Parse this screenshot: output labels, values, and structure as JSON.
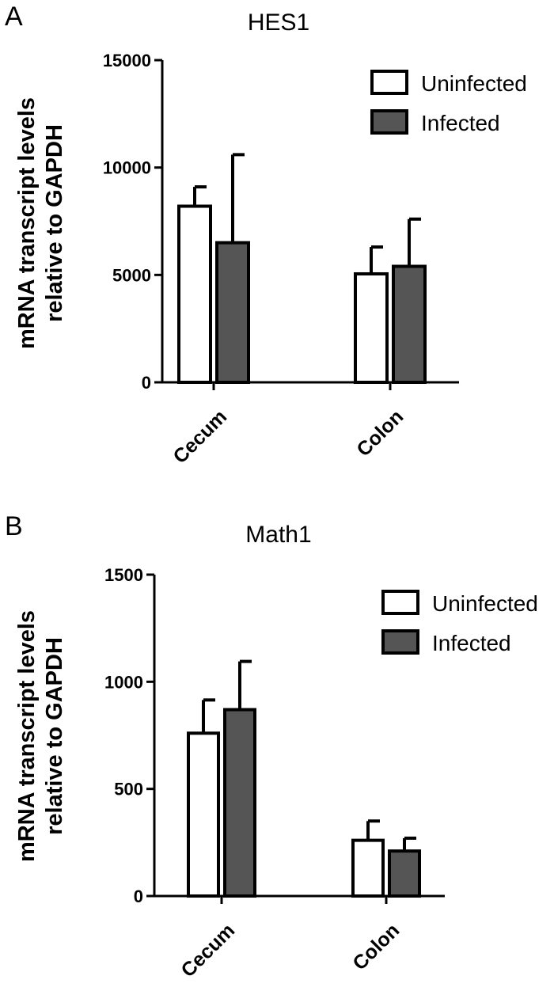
{
  "chart_data": [
    {
      "type": "bar",
      "panel": "A",
      "title": "HES1",
      "ylabel": [
        "mRNA transcript levels",
        "relative to GAPDH"
      ],
      "ylim": [
        0,
        15000
      ],
      "yticks": [
        "0",
        "5000",
        "10000",
        "15000"
      ],
      "ytick_values": [
        0,
        5000,
        10000,
        15000
      ],
      "categories": [
        "Cecum",
        "Colon"
      ],
      "series": [
        {
          "name": "Uninfected",
          "values": [
            8200,
            5050
          ],
          "errors": [
            900,
            1250
          ],
          "color": "#ffffff"
        },
        {
          "name": "Infected",
          "values": [
            6500,
            5400
          ],
          "errors": [
            4100,
            2200
          ],
          "color": "#555555"
        }
      ],
      "legend": "top-right",
      "grid": false
    },
    {
      "type": "bar",
      "panel": "B",
      "title": "Math1",
      "ylabel": [
        "mRNA transcript levels",
        "relative to GAPDH"
      ],
      "ylim": [
        0,
        1500
      ],
      "yticks": [
        "0",
        "500",
        "1000",
        "1500"
      ],
      "ytick_values": [
        0,
        500,
        1000,
        1500
      ],
      "categories": [
        "Cecum",
        "Colon"
      ],
      "series": [
        {
          "name": "Uninfected",
          "values": [
            760,
            260
          ],
          "errors": [
            155,
            90
          ],
          "color": "#ffffff"
        },
        {
          "name": "Infected",
          "values": [
            870,
            210
          ],
          "errors": [
            225,
            60
          ],
          "color": "#555555"
        }
      ],
      "legend": "top-right",
      "grid": false
    }
  ]
}
